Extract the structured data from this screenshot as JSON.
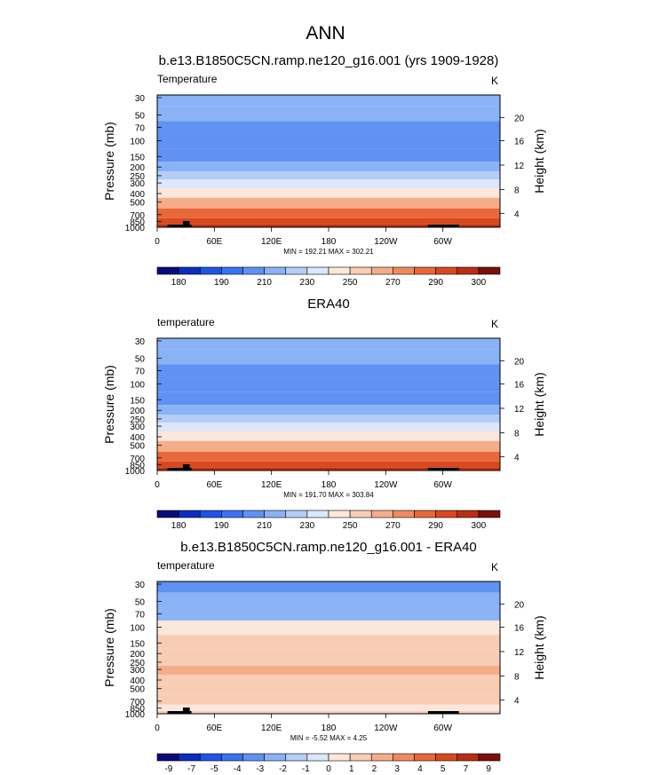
{
  "figure": {
    "title": "ANN"
  },
  "chart_data": [
    {
      "type": "heatmap",
      "title": "b.e13.B1850C5CN.ramp.ne120_g16.001 (yrs 1909-1928)",
      "variable_label": "Temperature",
      "units": "K",
      "xlabel": "",
      "ylabel": "Pressure (mb)",
      "y2label": "Height (km)",
      "x_ticks": [
        "0",
        "60E",
        "120E",
        "180",
        "120W",
        "60W"
      ],
      "y_ticks": [
        "30",
        "50",
        "70",
        "100",
        "150",
        "200",
        "250",
        "300",
        "400",
        "500",
        "700",
        "850",
        "1000"
      ],
      "y2_ticks": [
        "20",
        "16",
        "12",
        "8",
        "4"
      ],
      "stats": "MIN = 192.21  MAX = 302.21",
      "colorbar_labels": [
        "180",
        "190",
        "210",
        "230",
        "250",
        "270",
        "290",
        "300"
      ],
      "colorbar_colors": [
        "#0a0a7a",
        "#0b2fbd",
        "#1f55e6",
        "#3a72f0",
        "#5f92f3",
        "#8ab2f7",
        "#b4cef8",
        "#dce7fb",
        "#fbe7dc",
        "#f8cdb4",
        "#f5ad89",
        "#f08a5e",
        "#e9683b",
        "#d9481f",
        "#b82f14",
        "#7a1008"
      ],
      "levels_top_to_bottom": [
        220,
        215,
        208,
        208,
        212,
        220,
        228,
        236,
        248,
        262,
        276,
        288,
        296
      ]
    },
    {
      "type": "heatmap",
      "title": "ERA40",
      "variable_label": "temperature",
      "units": "K",
      "xlabel": "",
      "ylabel": "Pressure (mb)",
      "y2label": "Height (km)",
      "x_ticks": [
        "0",
        "60E",
        "120E",
        "180",
        "120W",
        "60W"
      ],
      "y_ticks": [
        "30",
        "50",
        "70",
        "100",
        "150",
        "200",
        "250",
        "300",
        "400",
        "500",
        "700",
        "850",
        "1000"
      ],
      "y2_ticks": [
        "20",
        "16",
        "12",
        "8",
        "4"
      ],
      "stats": "MIN = 191.70  MAX = 303.84",
      "colorbar_labels": [
        "180",
        "190",
        "210",
        "230",
        "250",
        "270",
        "290",
        "300"
      ],
      "colorbar_colors": [
        "#0a0a7a",
        "#0b2fbd",
        "#1f55e6",
        "#3a72f0",
        "#5f92f3",
        "#8ab2f7",
        "#b4cef8",
        "#dce7fb",
        "#fbe7dc",
        "#f8cdb4",
        "#f5ad89",
        "#f08a5e",
        "#e9683b",
        "#d9481f",
        "#b82f14",
        "#7a1008"
      ],
      "levels_top_to_bottom": [
        220,
        215,
        208,
        208,
        212,
        220,
        228,
        236,
        248,
        262,
        276,
        288,
        298
      ]
    },
    {
      "type": "heatmap",
      "title": "b.e13.B1850C5CN.ramp.ne120_g16.001 - ERA40",
      "variable_label": "temperature",
      "units": "K",
      "xlabel": "",
      "ylabel": "Pressure (mb)",
      "y2label": "Height (km)",
      "x_ticks": [
        "0",
        "60E",
        "120E",
        "180",
        "120W",
        "60W"
      ],
      "y_ticks": [
        "30",
        "50",
        "70",
        "100",
        "150",
        "200",
        "250",
        "300",
        "400",
        "500",
        "700",
        "850",
        "1000"
      ],
      "y2_ticks": [
        "20",
        "16",
        "12",
        "8",
        "4"
      ],
      "stats": "MIN = -5.52  MAX =  4.25",
      "colorbar_labels": [
        "-9",
        "-7",
        "-5",
        "-4",
        "-3",
        "-2",
        "-1",
        "0",
        "1",
        "2",
        "3",
        "4",
        "5",
        "7",
        "9"
      ],
      "colorbar_colors": [
        "#0a0a7a",
        "#0b2fbd",
        "#1f55e6",
        "#3a72f0",
        "#5f92f3",
        "#8ab2f7",
        "#b4cef8",
        "#dce7fb",
        "#fbe7dc",
        "#f8cdb4",
        "#f5ad89",
        "#f08a5e",
        "#e9683b",
        "#d9481f",
        "#b82f14",
        "#7a1008"
      ],
      "levels_top_to_bottom": [
        -4.5,
        -3.5,
        -3.5,
        0.5,
        1.5,
        1.5,
        2.5,
        3.5,
        2.5,
        1.5,
        1.5,
        0.5,
        1.5
      ]
    }
  ]
}
